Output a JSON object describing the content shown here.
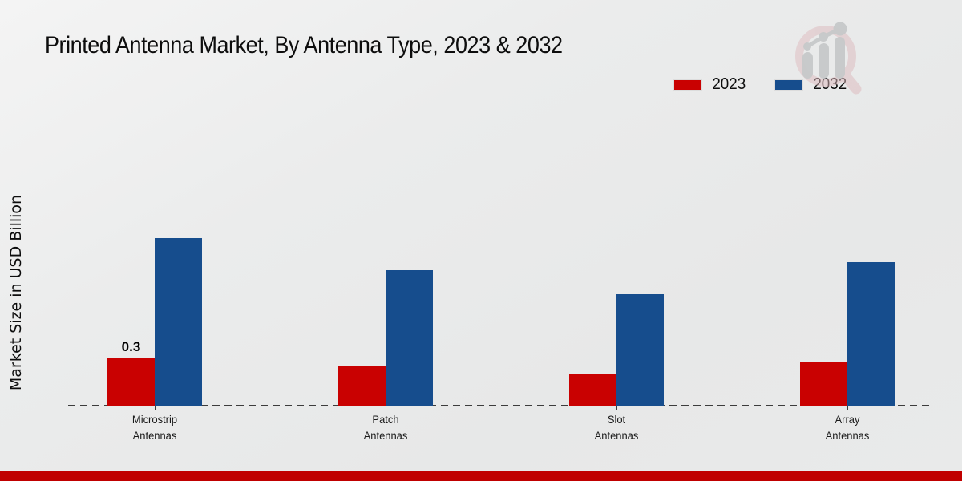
{
  "title": "Printed Antenna Market, By Antenna Type, 2023 & 2032",
  "y_axis_label": "Market Size in USD Billion",
  "legend": [
    {
      "label": "2023",
      "color": "#c90101"
    },
    {
      "label": "2032",
      "color": "#164d8d"
    }
  ],
  "footer_color": "#c00000",
  "watermark_icon": "market-research-magnifier-growth-logo",
  "chart_data": {
    "type": "bar",
    "title": "Printed Antenna Market, By Antenna Type, 2023 & 2032",
    "xlabel": "",
    "ylabel": "Market Size in USD Billion",
    "value_unit": "USD Billion",
    "categories": [
      "Microstrip Antennas",
      "Patch Antennas",
      "Slot Antennas",
      "Array Antennas"
    ],
    "series": [
      {
        "name": "2023",
        "color": "#c90101",
        "values": [
          0.3,
          0.25,
          0.2,
          0.28
        ],
        "data_labels": [
          "0.3",
          "",
          "",
          ""
        ]
      },
      {
        "name": "2032",
        "color": "#164d8d",
        "values": [
          1.05,
          0.85,
          0.7,
          0.9
        ],
        "data_labels": [
          "",
          "",
          "",
          ""
        ]
      }
    ],
    "ylim": [
      0,
      1.25
    ],
    "grid": false,
    "axis_line": "dashed-zero-line-only",
    "legend_position": "top-right"
  }
}
